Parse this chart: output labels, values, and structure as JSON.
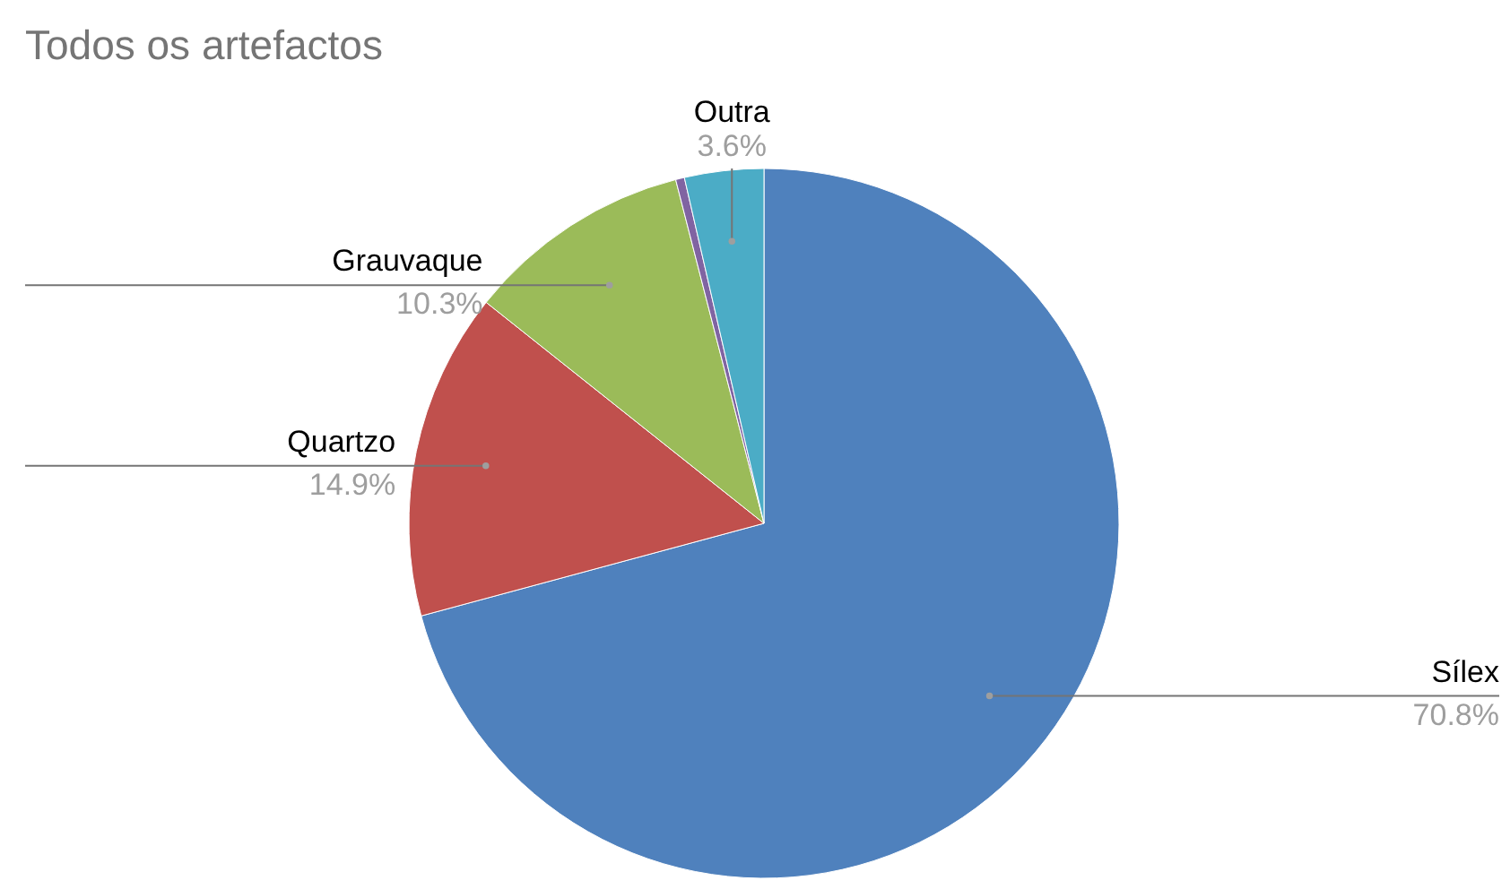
{
  "chart_data": {
    "type": "pie",
    "title": "Todos os artefactos",
    "categories": [
      "Sílex",
      "Quartzo",
      "Grauvaque",
      null,
      "Outra"
    ],
    "values": [
      70.8,
      14.9,
      10.3,
      0.4,
      3.6
    ],
    "value_labels": [
      "70.8%",
      "14.9%",
      "10.3%",
      null,
      "3.6%"
    ],
    "colors": [
      "#4f81bd",
      "#c0504d",
      "#9bbb59",
      "#8064a2",
      "#4bacc6"
    ]
  }
}
